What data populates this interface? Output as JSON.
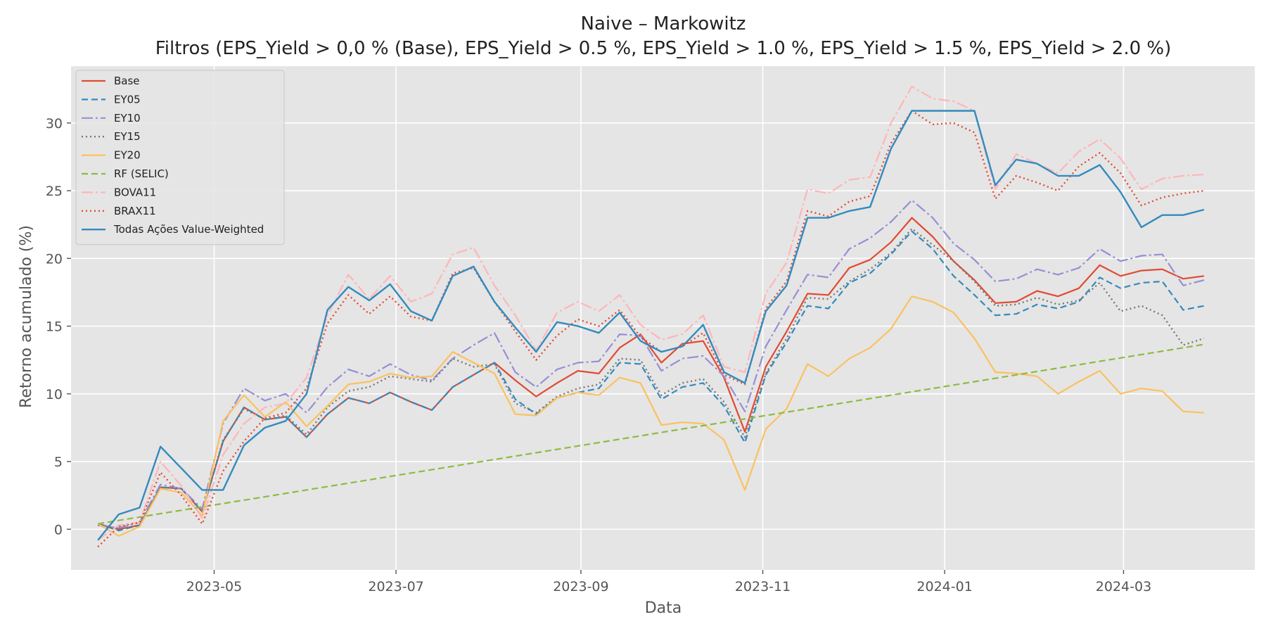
{
  "chart_data": {
    "type": "line",
    "title": "Naive – Markowitz",
    "subtitle": "Filtros (EPS_Yield > 0,0 % (Base), EPS_Yield > 0.5 %, EPS_Yield > 1.0 %, EPS_Yield > 1.5 %, EPS_Yield > 2.0 %)",
    "xlabel": "Data",
    "ylabel": "Retorno acumulado (%)",
    "x_axis": "date",
    "xlim": [
      "2023-03-14",
      "2024-04-14"
    ],
    "ylim": [
      -3,
      34.2
    ],
    "x_ticks": [
      "2023-05-01",
      "2023-07-01",
      "2023-09-01",
      "2023-11-01",
      "2024-01-01",
      "2024-03-01"
    ],
    "x_tick_labels": [
      "2023-05",
      "2023-07",
      "2023-09",
      "2023-11",
      "2024-01",
      "2024-03"
    ],
    "y_ticks": [
      0,
      5,
      10,
      15,
      20,
      25,
      30
    ],
    "y_tick_labels": [
      "0",
      "5",
      "10",
      "15",
      "20",
      "25",
      "30"
    ],
    "grid": true,
    "legend_position": "top-left",
    "background": "#e5e5e5",
    "x": [
      "2023-03-23",
      "2023-03-30",
      "2023-04-06",
      "2023-04-13",
      "2023-04-20",
      "2023-04-27",
      "2023-05-04",
      "2023-05-11",
      "2023-05-18",
      "2023-05-25",
      "2023-06-01",
      "2023-06-08",
      "2023-06-15",
      "2023-06-22",
      "2023-06-29",
      "2023-07-06",
      "2023-07-13",
      "2023-07-20",
      "2023-07-27",
      "2023-08-03",
      "2023-08-10",
      "2023-08-17",
      "2023-08-24",
      "2023-08-31",
      "2023-09-07",
      "2023-09-14",
      "2023-09-21",
      "2023-09-28",
      "2023-10-05",
      "2023-10-12",
      "2023-10-19",
      "2023-10-26",
      "2023-11-02",
      "2023-11-09",
      "2023-11-16",
      "2023-11-23",
      "2023-11-30",
      "2023-12-07",
      "2023-12-14",
      "2023-12-21",
      "2023-12-28",
      "2024-01-04",
      "2024-01-11",
      "2024-01-18",
      "2024-01-25",
      "2024-02-01",
      "2024-02-08",
      "2024-02-15",
      "2024-02-22",
      "2024-02-29",
      "2024-03-07",
      "2024-03-14",
      "2024-03-21",
      "2024-03-28"
    ],
    "series": [
      {
        "name": "Base",
        "color": "#E24A33",
        "dash": "",
        "width": 2.2,
        "values": [
          0.4,
          0.0,
          0.3,
          3.1,
          3.0,
          1.3,
          6.5,
          9.0,
          8.1,
          8.3,
          6.8,
          8.5,
          9.7,
          9.3,
          10.1,
          9.4,
          8.8,
          10.5,
          11.4,
          12.3,
          11.0,
          9.8,
          10.8,
          11.7,
          11.5,
          13.4,
          14.4,
          12.3,
          13.7,
          13.9,
          11.2,
          7.2,
          12.0,
          14.6,
          17.4,
          17.3,
          19.3,
          19.9,
          21.2,
          23.0,
          21.6,
          19.8,
          18.4,
          16.7,
          16.8,
          17.6,
          17.2,
          17.8,
          19.5,
          18.7,
          19.1,
          19.2,
          18.5,
          18.7
        ]
      },
      {
        "name": "EY05",
        "color": "#348ABD",
        "dash": "9,5",
        "width": 2.2,
        "values": [
          0.4,
          -0.1,
          0.3,
          3.1,
          3.0,
          1.3,
          6.5,
          9.0,
          8.1,
          8.3,
          6.8,
          8.5,
          9.7,
          9.3,
          10.1,
          9.4,
          8.8,
          10.5,
          11.4,
          12.3,
          9.6,
          8.5,
          9.7,
          10.1,
          10.4,
          12.3,
          12.2,
          9.6,
          10.5,
          10.8,
          9.1,
          6.4,
          11.4,
          13.8,
          16.5,
          16.3,
          18.2,
          18.9,
          20.3,
          22.0,
          20.7,
          18.7,
          17.3,
          15.8,
          15.9,
          16.6,
          16.3,
          16.8,
          18.6,
          17.8,
          18.2,
          18.3,
          16.2,
          16.5
        ]
      },
      {
        "name": "EY10",
        "color": "#988ED5",
        "dash": "16,4,3,4",
        "width": 2.2,
        "values": [
          0.3,
          0.1,
          0.5,
          3.3,
          3.0,
          1.5,
          7.8,
          10.4,
          9.5,
          10.0,
          8.6,
          10.5,
          11.8,
          11.3,
          12.2,
          11.4,
          11.0,
          12.6,
          13.6,
          14.5,
          11.6,
          10.5,
          11.8,
          12.3,
          12.4,
          14.4,
          14.3,
          11.7,
          12.6,
          12.8,
          11.3,
          8.7,
          13.5,
          16.2,
          18.8,
          18.6,
          20.7,
          21.5,
          22.7,
          24.3,
          23.0,
          21.1,
          19.9,
          18.3,
          18.5,
          19.2,
          18.8,
          19.3,
          20.7,
          19.8,
          20.2,
          20.3,
          18.0,
          18.4
        ]
      },
      {
        "name": "EY15",
        "color": "#777777",
        "dash": "2,4",
        "width": 2.4,
        "values": [
          0.3,
          0.0,
          0.3,
          3.1,
          3.0,
          1.3,
          6.6,
          8.9,
          8.1,
          8.4,
          7.0,
          9.0,
          10.2,
          10.5,
          11.3,
          11.1,
          10.9,
          12.6,
          12.0,
          12.2,
          9.3,
          8.6,
          9.8,
          10.4,
          10.7,
          12.6,
          12.5,
          9.9,
          10.8,
          11.1,
          9.4,
          6.8,
          11.5,
          14.1,
          17.1,
          17.0,
          18.3,
          19.2,
          20.4,
          22.2,
          21.0,
          19.8,
          18.3,
          16.5,
          16.6,
          17.1,
          16.6,
          16.9,
          18.2,
          16.1,
          16.5,
          15.8,
          13.6,
          14.1
        ]
      },
      {
        "name": "EY20",
        "color": "#FBC15E",
        "dash": "",
        "width": 2.2,
        "values": [
          0.4,
          -0.5,
          0.2,
          3.0,
          2.7,
          1.0,
          8.0,
          9.9,
          8.3,
          9.4,
          7.6,
          9.1,
          10.7,
          10.9,
          11.5,
          11.2,
          11.3,
          13.1,
          12.3,
          11.5,
          8.5,
          8.4,
          9.7,
          10.1,
          9.9,
          11.2,
          10.8,
          7.7,
          7.9,
          7.8,
          6.6,
          2.9,
          7.4,
          8.9,
          12.2,
          11.3,
          12.6,
          13.4,
          14.8,
          17.2,
          16.8,
          16.0,
          14.1,
          11.6,
          11.5,
          11.3,
          10.0,
          10.9,
          11.7,
          10.0,
          10.4,
          10.2,
          8.7,
          8.6
        ]
      },
      {
        "name": "RF (SELIC)",
        "color": "#8EBA42",
        "dash": "9,5",
        "width": 2.2,
        "values": [
          0.4,
          0.65,
          0.9,
          1.15,
          1.4,
          1.65,
          1.9,
          2.15,
          2.4,
          2.65,
          2.9,
          3.15,
          3.4,
          3.65,
          3.9,
          4.15,
          4.4,
          4.65,
          4.9,
          5.15,
          5.4,
          5.65,
          5.9,
          6.15,
          6.4,
          6.65,
          6.9,
          7.15,
          7.4,
          7.65,
          7.9,
          8.15,
          8.4,
          8.65,
          8.9,
          9.15,
          9.4,
          9.65,
          9.9,
          10.15,
          10.4,
          10.65,
          10.9,
          11.15,
          11.4,
          11.65,
          11.9,
          12.15,
          12.4,
          12.65,
          12.9,
          13.15,
          13.4,
          13.65
        ]
      },
      {
        "name": "BOVA11",
        "color": "#FFB5B8",
        "dash": "16,4,3,4",
        "width": 2.2,
        "values": [
          -0.8,
          0.3,
          0.5,
          5.0,
          3.2,
          0.8,
          5.5,
          7.8,
          9.0,
          9.3,
          11.2,
          15.8,
          18.8,
          17.0,
          18.7,
          16.8,
          17.4,
          20.3,
          20.8,
          18.0,
          15.8,
          13.2,
          16.0,
          16.8,
          16.1,
          17.3,
          15.1,
          14.0,
          14.4,
          15.8,
          12.0,
          11.6,
          17.4,
          19.7,
          25.1,
          24.8,
          25.8,
          26.0,
          30.0,
          32.7,
          31.8,
          31.6,
          30.9,
          25.1,
          27.7,
          27.0,
          26.3,
          27.9,
          28.8,
          27.4,
          25.1,
          25.9,
          26.1,
          26.2
        ]
      },
      {
        "name": "BRAX11",
        "color": "#E24A33",
        "dash": "2,4",
        "width": 2.4,
        "values": [
          -1.3,
          0.2,
          0.5,
          4.2,
          2.5,
          0.4,
          4.3,
          6.5,
          8.2,
          8.6,
          10.4,
          15.2,
          17.3,
          15.9,
          17.2,
          15.7,
          15.4,
          18.9,
          19.3,
          16.8,
          14.6,
          12.5,
          14.3,
          15.5,
          15.0,
          16.2,
          14.2,
          13.1,
          13.5,
          14.5,
          11.4,
          10.7,
          16.3,
          18.3,
          23.5,
          23.1,
          24.2,
          24.6,
          28.5,
          30.9,
          29.9,
          30.0,
          29.3,
          24.4,
          26.1,
          25.6,
          25.0,
          26.8,
          27.8,
          26.3,
          23.9,
          24.5,
          24.8,
          25.0
        ]
      },
      {
        "name": "Todas Ações Value-Weighted",
        "color": "#348ABD",
        "dash": "",
        "width": 2.4,
        "values": [
          -0.8,
          1.1,
          1.6,
          6.1,
          4.5,
          2.9,
          2.9,
          6.2,
          7.5,
          8.0,
          10.0,
          16.2,
          17.9,
          16.9,
          18.1,
          16.1,
          15.4,
          18.7,
          19.4,
          16.8,
          14.9,
          13.1,
          15.3,
          15.0,
          14.5,
          16.0,
          13.9,
          13.1,
          13.5,
          15.1,
          11.6,
          10.8,
          16.1,
          18.0,
          23.0,
          23.0,
          23.5,
          23.8,
          28.1,
          30.9,
          30.9,
          30.9,
          30.9,
          25.4,
          27.3,
          27.0,
          26.1,
          26.1,
          26.9,
          24.9,
          22.3,
          23.2,
          23.2,
          23.6
        ]
      }
    ]
  }
}
